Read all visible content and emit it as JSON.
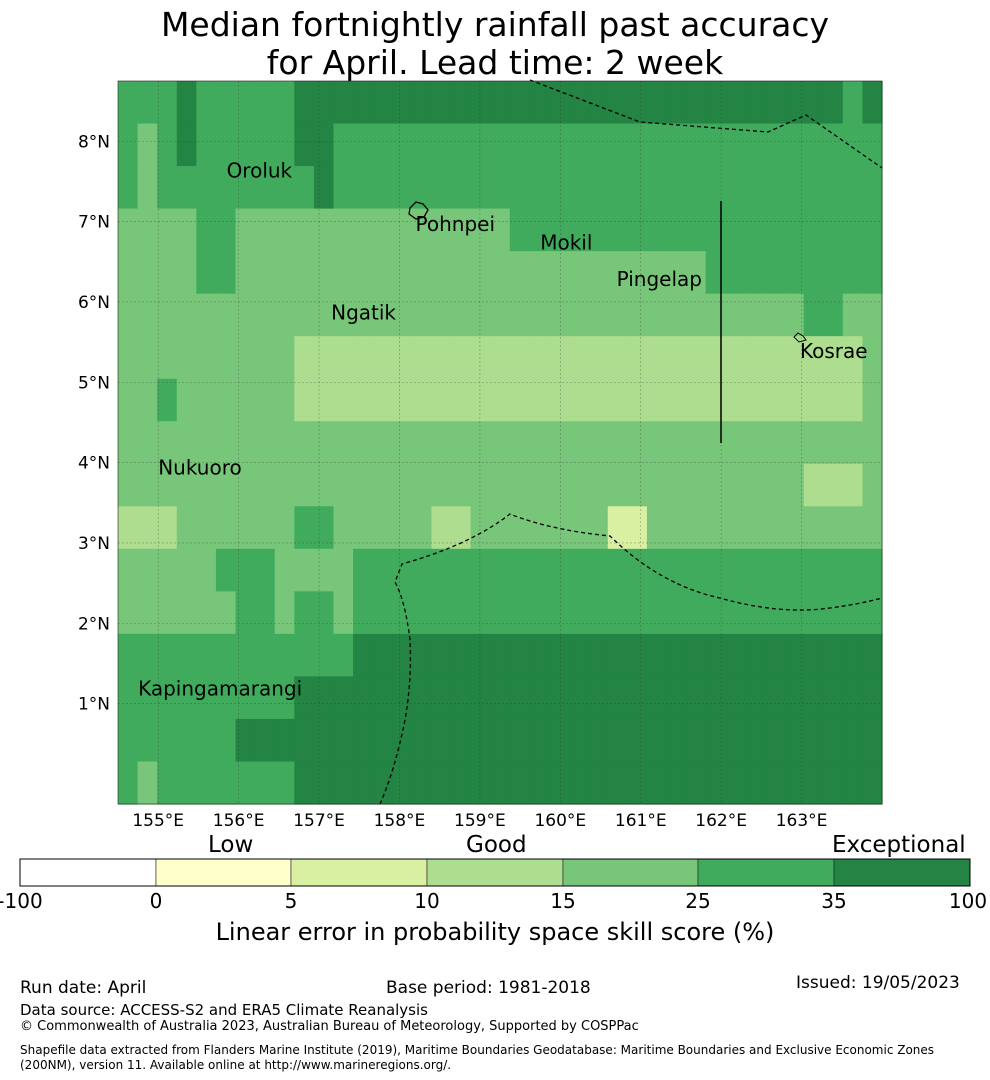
{
  "title": {
    "line1": "Median fortnightly rainfall past accuracy",
    "line2": "for April. Lead time: 2 week"
  },
  "map": {
    "lat_labels": [
      "8°N",
      "7°N",
      "6°N",
      "5°N",
      "4°N",
      "3°N",
      "2°N",
      "1°N"
    ],
    "lat_values": [
      8,
      7,
      6,
      5,
      4,
      3,
      2,
      1
    ],
    "lon_labels": [
      "155°E",
      "156°E",
      "157°E",
      "158°E",
      "159°E",
      "160°E",
      "161°E",
      "162°E",
      "163°E"
    ],
    "lon_values": [
      155,
      156,
      157,
      158,
      159,
      160,
      161,
      162,
      163
    ],
    "lon_range": [
      154.5,
      164.0
    ],
    "lat_range": [
      -0.25,
      8.75
    ],
    "cell_size_deg": [
      0.833333,
      0.555556
    ],
    "grid": [
      [
        5,
        5,
        5,
        6,
        5,
        5,
        5,
        5,
        5,
        6,
        6,
        6,
        6,
        6,
        6,
        6,
        6,
        6,
        6,
        6,
        6,
        6,
        6,
        6,
        6,
        6,
        6,
        6,
        6,
        6,
        6,
        6,
        6,
        6,
        6,
        6,
        6,
        5,
        6
      ],
      [
        5,
        4,
        5,
        6,
        5,
        5,
        5,
        5,
        5,
        6,
        6,
        5,
        5,
        5,
        5,
        5,
        5,
        5,
        5,
        5,
        5,
        5,
        5,
        5,
        5,
        5,
        5,
        5,
        5,
        5,
        5,
        5,
        5,
        5,
        5,
        5,
        5,
        5,
        5
      ],
      [
        5,
        4,
        5,
        5,
        5,
        5,
        5,
        5,
        5,
        5,
        6,
        5,
        5,
        5,
        5,
        5,
        5,
        5,
        5,
        5,
        5,
        5,
        5,
        5,
        5,
        5,
        5,
        5,
        5,
        5,
        5,
        5,
        5,
        5,
        5,
        5,
        5,
        5,
        5
      ],
      [
        4,
        4,
        4,
        4,
        5,
        5,
        4,
        4,
        4,
        4,
        4,
        4,
        4,
        4,
        4,
        4,
        4,
        4,
        4,
        4,
        5,
        5,
        5,
        5,
        5,
        5,
        5,
        5,
        5,
        5,
        5,
        5,
        5,
        5,
        5,
        5,
        5,
        5,
        5
      ],
      [
        4,
        4,
        4,
        4,
        5,
        5,
        4,
        4,
        4,
        4,
        4,
        4,
        4,
        4,
        4,
        4,
        4,
        4,
        4,
        4,
        4,
        4,
        4,
        4,
        4,
        4,
        4,
        4,
        4,
        4,
        5,
        5,
        5,
        5,
        5,
        5,
        5,
        5,
        5
      ],
      [
        4,
        4,
        4,
        4,
        4,
        4,
        4,
        4,
        4,
        4,
        4,
        4,
        4,
        4,
        4,
        4,
        4,
        4,
        4,
        4,
        4,
        4,
        4,
        4,
        4,
        4,
        4,
        4,
        4,
        4,
        4,
        4,
        4,
        4,
        4,
        5,
        5,
        4,
        4
      ],
      [
        4,
        4,
        4,
        4,
        4,
        4,
        4,
        4,
        4,
        3,
        3,
        3,
        3,
        3,
        3,
        3,
        3,
        3,
        3,
        3,
        3,
        3,
        3,
        3,
        3,
        3,
        3,
        3,
        3,
        3,
        3,
        3,
        3,
        3,
        3,
        3,
        3,
        3,
        4
      ],
      [
        4,
        4,
        5,
        4,
        4,
        4,
        4,
        4,
        4,
        3,
        3,
        3,
        3,
        3,
        3,
        3,
        3,
        3,
        3,
        3,
        3,
        3,
        3,
        3,
        3,
        3,
        3,
        3,
        3,
        3,
        3,
        3,
        3,
        3,
        3,
        3,
        3,
        3,
        4
      ],
      [
        4,
        4,
        4,
        4,
        4,
        4,
        4,
        4,
        4,
        4,
        4,
        4,
        4,
        4,
        4,
        4,
        4,
        4,
        4,
        4,
        4,
        4,
        4,
        4,
        4,
        4,
        4,
        4,
        4,
        4,
        4,
        4,
        4,
        4,
        4,
        4,
        4,
        4,
        4
      ],
      [
        4,
        4,
        4,
        4,
        4,
        4,
        4,
        4,
        4,
        4,
        4,
        4,
        4,
        4,
        4,
        4,
        4,
        4,
        4,
        4,
        4,
        4,
        4,
        4,
        4,
        4,
        4,
        4,
        4,
        4,
        4,
        4,
        4,
        4,
        4,
        3,
        3,
        3,
        4
      ],
      [
        3,
        3,
        3,
        4,
        4,
        4,
        4,
        4,
        4,
        5,
        5,
        4,
        4,
        4,
        4,
        4,
        3,
        3,
        4,
        4,
        4,
        4,
        4,
        4,
        4,
        2,
        2,
        4,
        4,
        4,
        4,
        4,
        4,
        4,
        4,
        4,
        4,
        4,
        4
      ],
      [
        4,
        4,
        4,
        4,
        4,
        5,
        5,
        5,
        4,
        4,
        4,
        4,
        5,
        5,
        5,
        5,
        5,
        5,
        5,
        5,
        5,
        5,
        5,
        5,
        5,
        5,
        5,
        5,
        5,
        5,
        5,
        5,
        5,
        5,
        5,
        5,
        5,
        5,
        5
      ],
      [
        4,
        4,
        4,
        4,
        4,
        4,
        5,
        5,
        4,
        5,
        5,
        4,
        5,
        5,
        5,
        5,
        5,
        5,
        5,
        5,
        5,
        5,
        5,
        5,
        5,
        5,
        5,
        5,
        5,
        5,
        5,
        5,
        5,
        5,
        5,
        5,
        5,
        5,
        5
      ],
      [
        5,
        5,
        5,
        5,
        5,
        5,
        5,
        5,
        5,
        5,
        5,
        5,
        6,
        6,
        6,
        6,
        6,
        6,
        6,
        6,
        6,
        6,
        6,
        6,
        6,
        6,
        6,
        6,
        6,
        6,
        6,
        6,
        6,
        6,
        6,
        6,
        6,
        6,
        6
      ],
      [
        5,
        5,
        5,
        5,
        5,
        5,
        5,
        5,
        5,
        6,
        6,
        6,
        6,
        6,
        6,
        6,
        6,
        6,
        6,
        6,
        6,
        6,
        6,
        6,
        6,
        6,
        6,
        6,
        6,
        6,
        6,
        6,
        6,
        6,
        6,
        6,
        6,
        6,
        6
      ],
      [
        5,
        5,
        5,
        5,
        5,
        5,
        6,
        6,
        6,
        6,
        6,
        6,
        6,
        6,
        6,
        6,
        6,
        6,
        6,
        6,
        6,
        6,
        6,
        6,
        6,
        6,
        6,
        6,
        6,
        6,
        6,
        6,
        6,
        6,
        6,
        6,
        6,
        6,
        6
      ],
      [
        5,
        4,
        5,
        5,
        5,
        5,
        5,
        5,
        5,
        6,
        6,
        6,
        6,
        6,
        6,
        6,
        6,
        6,
        6,
        6,
        6,
        6,
        6,
        6,
        6,
        6,
        6,
        6,
        6,
        6,
        6,
        6,
        6,
        6,
        6,
        6,
        6,
        6,
        6
      ]
    ],
    "cell_colors": [
      "#ffffff",
      "#ffffcc",
      "#d9f0a3",
      "#addd8e",
      "#78c679",
      "#41ab5d",
      "#238443"
    ],
    "islands": [
      {
        "name": "Oroluk",
        "lon": 155.85,
        "lat": 7.55
      },
      {
        "name": "Pohnpei",
        "lon": 158.2,
        "lat": 6.88
      },
      {
        "name": "Mokil",
        "lon": 159.75,
        "lat": 6.65
      },
      {
        "name": "Pingelap",
        "lon": 160.7,
        "lat": 6.2
      },
      {
        "name": "Ngatik",
        "lon": 157.15,
        "lat": 5.78
      },
      {
        "name": "Kosrae",
        "lon": 162.98,
        "lat": 5.3
      },
      {
        "name": "Nukuoro",
        "lon": 155.0,
        "lat": 3.85
      },
      {
        "name": "Kapingamarangi",
        "lon": 154.75,
        "lat": 1.1
      }
    ]
  },
  "colorbar": {
    "level_labels": {
      "low": "Low",
      "good": "Good",
      "exceptional": "Exceptional"
    },
    "ticks": [
      "-100",
      "0",
      "5",
      "10",
      "15",
      "25",
      "35",
      "100"
    ],
    "colors": [
      "#ffffff",
      "#ffffcc",
      "#d9f0a3",
      "#addd8e",
      "#78c679",
      "#41ab5d",
      "#238443"
    ],
    "label": "Linear error in probability space skill score (%)"
  },
  "footer": {
    "run_date": "Run date: April",
    "base_period": "Base period: 1981-2018",
    "issued": "Issued: 19/05/2023",
    "data_source": "Data source: ACCESS-S2 and ERA5 Climate Reanalysis",
    "copyright": "© Commonwealth of Australia 2023, Australian Bureau of Meteorology, Supported by COSPPac",
    "shapefile_line1": "Shapefile data extracted from Flanders Marine Institute (2019), Maritime Boundaries Geodatabase: Maritime Boundaries and Exclusive Economic Zones",
    "shapefile_line2": "(200NM), version 11. Available online at http://www.marineregions.org/."
  }
}
